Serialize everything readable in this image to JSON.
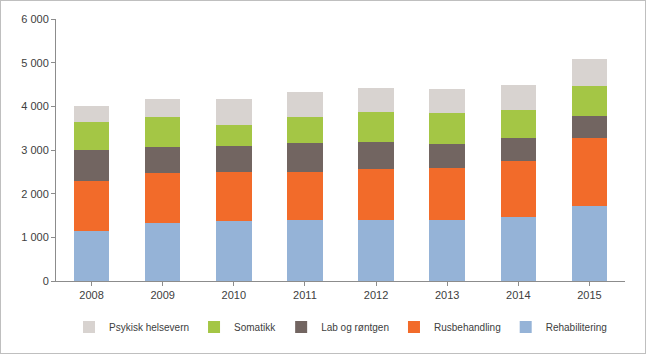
{
  "chart_data": {
    "type": "bar",
    "stacked": true,
    "categories": [
      "2008",
      "2009",
      "2010",
      "2011",
      "2012",
      "2013",
      "2014",
      "2015"
    ],
    "series": [
      {
        "name": "Rehabilitering",
        "color": "#95B3D7",
        "values": [
          1150,
          1320,
          1370,
          1400,
          1400,
          1400,
          1460,
          1720
        ]
      },
      {
        "name": "Rusbehandling",
        "color": "#F26B2A",
        "values": [
          1150,
          1150,
          1130,
          1100,
          1170,
          1180,
          1280,
          1550
        ]
      },
      {
        "name": "Lab og røntgen",
        "color": "#726561",
        "values": [
          700,
          600,
          600,
          650,
          620,
          550,
          530,
          520
        ]
      },
      {
        "name": "Somatikk",
        "color": "#A4C645",
        "values": [
          650,
          680,
          480,
          600,
          680,
          720,
          640,
          680
        ]
      },
      {
        "name": "Psykisk helsevern",
        "color": "#D8D3D0",
        "values": [
          350,
          420,
          590,
          570,
          550,
          550,
          580,
          610
        ]
      }
    ],
    "ylim": [
      0,
      6000
    ],
    "yticks": [
      0,
      {
        "value": 1000,
        "label": "1 000"
      },
      {
        "value": 2000,
        "label": "2 000"
      },
      {
        "value": 3000,
        "label": "3 000"
      },
      {
        "value": 4000,
        "label": "4 000"
      },
      {
        "value": 5000,
        "label": "5 000"
      },
      {
        "value": 6000,
        "label": "6 000"
      }
    ],
    "grid": false,
    "legend": "bottom"
  }
}
